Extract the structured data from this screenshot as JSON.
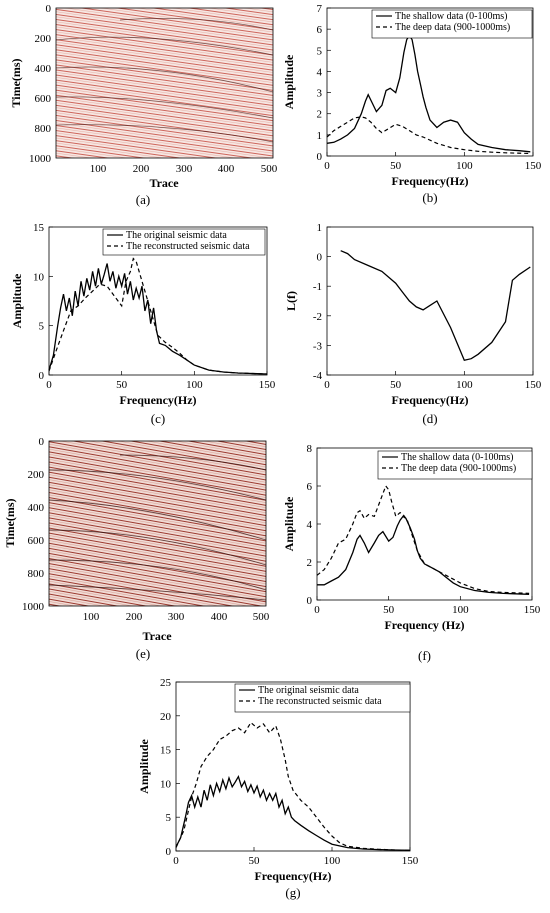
{
  "panels": [
    {
      "id": "a",
      "caption": "(a)",
      "type": "seismic_section",
      "x_label": "Trace",
      "y_label": "Time(ms)",
      "x_ticks": [
        "100",
        "200",
        "300",
        "400",
        "500"
      ],
      "y_ticks": [
        "0",
        "200",
        "400",
        "600",
        "800",
        "1000"
      ],
      "xlim": [
        0,
        510
      ],
      "ylim": [
        0,
        1000
      ],
      "y_inverted": true,
      "colors": {
        "event": "#b8342a",
        "background": "#f7e7e3"
      }
    },
    {
      "id": "b",
      "caption": "(b)",
      "x_label": "Frequency(Hz)",
      "y_label": "Amplitude",
      "x_ticks": [
        "0",
        "50",
        "100",
        "150"
      ],
      "y_ticks": [
        "0",
        "1",
        "2",
        "3",
        "4",
        "5",
        "6",
        "7"
      ],
      "legend": [
        "The shallow data (0-100ms)",
        "The deep data (900-1000ms)"
      ]
    },
    {
      "id": "c",
      "caption": "(c)",
      "x_label": "Frequency(Hz)",
      "y_label": "Amplitude",
      "x_ticks": [
        "0",
        "50",
        "100",
        "150"
      ],
      "y_ticks": [
        "0",
        "5",
        "10",
        "15"
      ],
      "legend": [
        "The original seismic data",
        "The reconstructed seismic data"
      ]
    },
    {
      "id": "d",
      "caption": "(d)",
      "x_label": "Frequency(Hz)",
      "y_label": "L(f)",
      "x_ticks": [
        "0",
        "50",
        "100",
        "150"
      ],
      "y_ticks": [
        "-4",
        "-3",
        "-2",
        "-1",
        "0",
        "1"
      ]
    },
    {
      "id": "e",
      "caption": "(e)",
      "type": "seismic_section",
      "x_label": "Trace",
      "y_label": "Time(ms)",
      "x_ticks": [
        "100",
        "200",
        "300",
        "400",
        "500"
      ],
      "y_ticks": [
        "0",
        "200",
        "400",
        "600",
        "800",
        "1000"
      ],
      "xlim": [
        0,
        510
      ],
      "ylim": [
        0,
        1000
      ],
      "y_inverted": true,
      "colors": {
        "event": "#8e2a22",
        "background": "#f1dcd6"
      }
    },
    {
      "id": "f",
      "caption": "(f)",
      "x_label": "Frequency (Hz)",
      "y_label": "Amplitude",
      "x_ticks": [
        "0",
        "50",
        "100",
        "150"
      ],
      "y_ticks": [
        "0",
        "2",
        "4",
        "6",
        "8"
      ],
      "legend": [
        "The shallow data (0-100ms)",
        "The deep data (900-1000ms)"
      ]
    },
    {
      "id": "g",
      "caption": "(g)",
      "x_label": "Frequency(Hz)",
      "y_label": "Amplitude",
      "x_ticks": [
        "0",
        "50",
        "100",
        "150"
      ],
      "y_ticks": [
        "0",
        "5",
        "10",
        "15",
        "20",
        "25"
      ],
      "legend": [
        "The original seismic data",
        "The reconstructed seismic data"
      ]
    }
  ],
  "chart_data": [
    {
      "panel": "b",
      "type": "line",
      "xlim": [
        0,
        150
      ],
      "ylim": [
        0,
        7
      ],
      "grid": false,
      "legend_position": "top-right",
      "series": [
        {
          "name": "The shallow data (0-100ms)",
          "style": "solid",
          "x": [
            0,
            5,
            10,
            15,
            20,
            25,
            28,
            30,
            33,
            36,
            40,
            43,
            46,
            50,
            53,
            56,
            58,
            60,
            62,
            64,
            66,
            68,
            70,
            72,
            75,
            80,
            85,
            90,
            95,
            100,
            105,
            110,
            120,
            130,
            140,
            148
          ],
          "y": [
            0.6,
            0.65,
            0.8,
            1.0,
            1.3,
            2.0,
            2.6,
            2.9,
            2.5,
            2.1,
            2.4,
            3.1,
            3.2,
            3.0,
            3.7,
            4.9,
            5.5,
            5.7,
            5.5,
            4.8,
            4.0,
            3.4,
            2.8,
            2.3,
            1.7,
            1.35,
            1.6,
            1.7,
            1.6,
            1.1,
            0.8,
            0.55,
            0.4,
            0.3,
            0.25,
            0.2
          ]
        },
        {
          "name": "The deep data (900-1000ms)",
          "style": "dashed",
          "x": [
            0,
            5,
            10,
            15,
            20,
            25,
            28,
            32,
            36,
            40,
            45,
            50,
            55,
            60,
            65,
            70,
            80,
            90,
            100,
            110,
            120,
            130,
            148
          ],
          "y": [
            0.9,
            1.2,
            1.4,
            1.6,
            1.8,
            1.85,
            1.8,
            1.6,
            1.3,
            1.1,
            1.3,
            1.5,
            1.4,
            1.2,
            1.0,
            0.9,
            0.6,
            0.4,
            0.3,
            0.22,
            0.18,
            0.15,
            0.12
          ]
        }
      ]
    },
    {
      "panel": "c",
      "type": "line",
      "xlim": [
        0,
        150
      ],
      "ylim": [
        0,
        15
      ],
      "grid": false,
      "legend_position": "top-right",
      "series": [
        {
          "name": "The original seismic data",
          "style": "solid",
          "x": [
            0,
            3,
            6,
            8,
            10,
            12,
            14,
            16,
            18,
            20,
            22,
            24,
            26,
            28,
            30,
            32,
            34,
            36,
            38,
            40,
            42,
            44,
            46,
            48,
            50,
            52,
            54,
            56,
            58,
            60,
            62,
            64,
            66,
            68,
            70,
            72,
            74,
            76,
            80,
            85,
            90,
            95,
            100,
            110,
            120,
            130,
            140,
            150
          ],
          "y": [
            0.5,
            2.0,
            5.0,
            6.8,
            8.2,
            6.5,
            7.8,
            6.0,
            8.5,
            7.0,
            9.5,
            8.0,
            9.8,
            8.6,
            10.5,
            9.0,
            10.8,
            9.2,
            10.2,
            11.3,
            9.5,
            10.5,
            8.8,
            10.0,
            9.0,
            10.3,
            8.2,
            9.5,
            7.6,
            8.8,
            7.8,
            9.0,
            6.5,
            7.6,
            5.2,
            6.8,
            4.5,
            3.2,
            3.0,
            2.4,
            2.0,
            1.5,
            1.0,
            0.5,
            0.3,
            0.2,
            0.15,
            0.1
          ]
        },
        {
          "name": "The reconstructed seismic data",
          "style": "dashed",
          "x": [
            0,
            5,
            10,
            15,
            20,
            25,
            30,
            35,
            40,
            45,
            50,
            53,
            56,
            58,
            60,
            62,
            64,
            66,
            68,
            70,
            72,
            75,
            80,
            85,
            90,
            95,
            100,
            110,
            120,
            130,
            140,
            150
          ],
          "y": [
            0.4,
            2.5,
            4.5,
            6.5,
            7.0,
            7.8,
            8.5,
            9.2,
            9.0,
            8.0,
            7.0,
            9.5,
            10.5,
            11.8,
            11.5,
            10.5,
            9.5,
            8.5,
            7.5,
            6.5,
            5.5,
            4.0,
            3.3,
            2.8,
            2.2,
            1.5,
            1.0,
            0.5,
            0.3,
            0.2,
            0.15,
            0.1
          ]
        }
      ]
    },
    {
      "panel": "d",
      "type": "line",
      "xlim": [
        0,
        150
      ],
      "ylim": [
        -4,
        1
      ],
      "grid": false,
      "series": [
        {
          "name": "",
          "style": "solid",
          "x": [
            10,
            15,
            20,
            30,
            40,
            50,
            55,
            60,
            65,
            70,
            75,
            80,
            90,
            100,
            105,
            110,
            120,
            130,
            135,
            140,
            148
          ],
          "y": [
            0.2,
            0.1,
            -0.1,
            -0.3,
            -0.5,
            -0.9,
            -1.2,
            -1.5,
            -1.7,
            -1.8,
            -1.65,
            -1.5,
            -2.4,
            -3.5,
            -3.45,
            -3.3,
            -2.9,
            -2.2,
            -0.8,
            -0.6,
            -0.35
          ]
        }
      ]
    },
    {
      "panel": "f",
      "type": "line",
      "xlim": [
        0,
        150
      ],
      "ylim": [
        0,
        8
      ],
      "grid": false,
      "legend_position": "top-right",
      "series": [
        {
          "name": "The shallow data (0-100ms)",
          "style": "solid",
          "x": [
            0,
            5,
            10,
            15,
            20,
            25,
            28,
            30,
            33,
            36,
            40,
            43,
            46,
            50,
            53,
            56,
            58,
            60,
            62,
            65,
            68,
            70,
            72,
            75,
            80,
            85,
            90,
            95,
            100,
            110,
            120,
            130,
            148
          ],
          "y": [
            0.8,
            0.8,
            1.0,
            1.2,
            1.6,
            2.5,
            3.2,
            3.4,
            3.0,
            2.5,
            3.0,
            3.4,
            3.6,
            3.1,
            3.3,
            3.9,
            4.2,
            4.4,
            4.3,
            3.8,
            3.2,
            2.6,
            2.2,
            1.9,
            1.7,
            1.5,
            1.2,
            0.9,
            0.7,
            0.5,
            0.4,
            0.35,
            0.3
          ]
        },
        {
          "name": "The deep data (900-1000ms)",
          "style": "dashed",
          "x": [
            0,
            5,
            10,
            15,
            20,
            25,
            28,
            30,
            33,
            36,
            40,
            43,
            46,
            48,
            50,
            52,
            55,
            58,
            60,
            63,
            66,
            70,
            75,
            80,
            85,
            90,
            100,
            110,
            120,
            130,
            148
          ],
          "y": [
            1.3,
            1.6,
            2.2,
            3.0,
            3.2,
            4.0,
            4.6,
            4.7,
            4.3,
            4.5,
            4.4,
            5.0,
            5.6,
            6.0,
            5.8,
            5.2,
            4.4,
            4.6,
            4.5,
            4.2,
            3.5,
            2.6,
            1.9,
            1.7,
            1.5,
            1.3,
            0.9,
            0.6,
            0.45,
            0.4,
            0.35
          ]
        }
      ]
    },
    {
      "panel": "g",
      "type": "line",
      "xlim": [
        0,
        150
      ],
      "ylim": [
        0,
        25
      ],
      "grid": false,
      "legend_position": "top-right",
      "series": [
        {
          "name": "The original seismic data",
          "style": "solid",
          "x": [
            0,
            3,
            6,
            8,
            10,
            12,
            14,
            16,
            18,
            20,
            22,
            24,
            26,
            28,
            30,
            32,
            34,
            36,
            38,
            40,
            42,
            44,
            46,
            48,
            50,
            52,
            54,
            56,
            58,
            60,
            62,
            64,
            66,
            68,
            70,
            72,
            74,
            76,
            80,
            85,
            90,
            95,
            100,
            110,
            120,
            130,
            140,
            150
          ],
          "y": [
            0.6,
            2.0,
            5.0,
            7.2,
            8.2,
            6.5,
            8.0,
            6.5,
            9.0,
            7.5,
            9.8,
            8.2,
            10.0,
            8.8,
            10.5,
            9.2,
            10.8,
            9.5,
            10.2,
            11.0,
            9.5,
            10.3,
            8.8,
            9.8,
            8.6,
            9.6,
            8.0,
            9.0,
            7.5,
            8.5,
            7.5,
            8.5,
            6.5,
            7.5,
            5.5,
            6.5,
            5.0,
            4.5,
            3.8,
            3.0,
            2.3,
            1.6,
            1.0,
            0.5,
            0.3,
            0.2,
            0.15,
            0.1
          ]
        },
        {
          "name": "The reconstructed seismic data",
          "style": "dashed",
          "x": [
            0,
            5,
            10,
            13,
            16,
            20,
            24,
            28,
            32,
            36,
            40,
            44,
            48,
            52,
            56,
            60,
            64,
            67,
            70,
            72,
            75,
            80,
            85,
            90,
            95,
            100,
            105,
            110,
            120,
            130,
            140,
            150
          ],
          "y": [
            0.5,
            3.0,
            8.0,
            10.0,
            12.5,
            14.0,
            15.0,
            16.5,
            17.0,
            17.8,
            18.2,
            17.5,
            19.0,
            18.2,
            18.8,
            17.5,
            18.5,
            16.5,
            13.5,
            11.0,
            9.0,
            7.5,
            6.5,
            5.0,
            3.5,
            2.2,
            1.2,
            0.7,
            0.4,
            0.25,
            0.15,
            0.1
          ]
        }
      ]
    }
  ]
}
